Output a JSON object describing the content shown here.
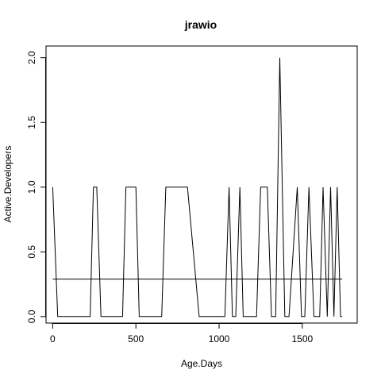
{
  "chart_data": {
    "type": "line",
    "title": "jrawio",
    "xlabel": "Age.Days",
    "ylabel": "Active.Developers",
    "xlim": [
      -40,
      1830
    ],
    "ylim": [
      -0.05,
      2.09
    ],
    "x_ticks": [
      0,
      500,
      1000,
      1500
    ],
    "x_tick_labels": [
      "0",
      "500",
      "1000",
      "1500"
    ],
    "y_ticks": [
      0.0,
      0.5,
      1.0,
      1.5,
      2.0
    ],
    "y_tick_labels": [
      "0.0",
      "0.5",
      "1.0",
      "1.5",
      "2.0"
    ],
    "grid": false,
    "series": [
      {
        "x": [
          0,
          30,
          225,
          245,
          265,
          290,
          420,
          440,
          500,
          520,
          655,
          680,
          810,
          880,
          1035,
          1060,
          1080,
          1100,
          1125,
          1145,
          1225,
          1250,
          1290,
          1315,
          1340,
          1365,
          1395,
          1420,
          1470,
          1495,
          1515,
          1540,
          1570,
          1605,
          1625,
          1650,
          1670,
          1690,
          1710,
          1730,
          1740
        ],
        "y": [
          1,
          0,
          0,
          1,
          1,
          0,
          0,
          1,
          1,
          0,
          0,
          1,
          1,
          0,
          0,
          1,
          0,
          0,
          1,
          0,
          0,
          1,
          1,
          0,
          0,
          2,
          0,
          0,
          1,
          0,
          0,
          1,
          0,
          0,
          1,
          0,
          1,
          0,
          1,
          0,
          0
        ],
        "color": "#000000"
      },
      {
        "x": [
          0,
          1740
        ],
        "y": [
          0.29,
          0.29
        ],
        "color": "#000000"
      }
    ]
  }
}
